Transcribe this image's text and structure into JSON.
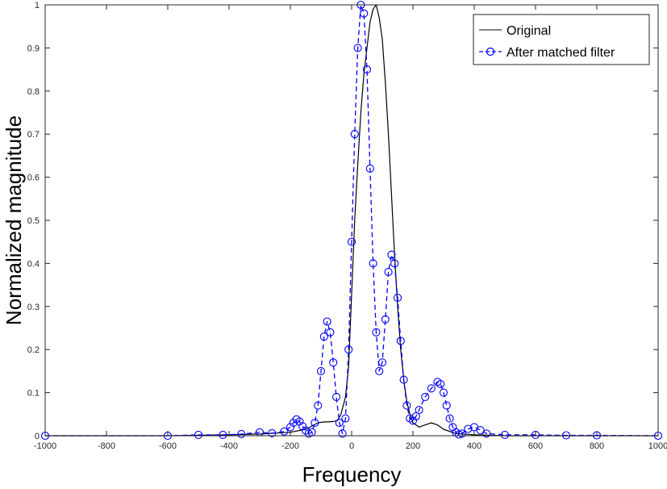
{
  "chart_data": {
    "type": "line",
    "xlabel": "Frequency",
    "ylabel": "Normalized magnitude",
    "xlim": [
      -1000,
      1000
    ],
    "ylim": [
      0,
      1
    ],
    "xticks": [
      -1000,
      -800,
      -600,
      -400,
      -200,
      0,
      200,
      400,
      600,
      800,
      1000
    ],
    "yticks": [
      0,
      0.1,
      0.2,
      0.3,
      0.4,
      0.5,
      0.6,
      0.7,
      0.8,
      0.9,
      1
    ],
    "xtick_labels": [
      "-1000",
      "-800",
      "-600",
      "-400",
      "-200",
      "0",
      "200",
      "400",
      "600",
      "800",
      "1000"
    ],
    "ytick_labels": [
      "0",
      "0.1",
      "0.2",
      "0.3",
      "0.4",
      "0.5",
      "0.6",
      "0.7",
      "0.8",
      "0.9",
      "1"
    ],
    "grid": false,
    "legend_position": "top-right",
    "series": [
      {
        "name": "Original",
        "color": "#000000",
        "style": "solid",
        "marker": "none",
        "x": [
          -1000,
          -600,
          -400,
          -300,
          -200,
          -150,
          -110,
          -90,
          -80,
          -60,
          -45,
          -35,
          -20,
          -10,
          0,
          10,
          20,
          30,
          40,
          50,
          60,
          70,
          80,
          90,
          100,
          110,
          120,
          130,
          140,
          150,
          160,
          170,
          180,
          190,
          200,
          220,
          240,
          260,
          280,
          300,
          340,
          400,
          500,
          700,
          1000
        ],
        "y": [
          0,
          0,
          0.002,
          0.004,
          0.008,
          0.015,
          0.03,
          0.032,
          0.032,
          0.033,
          0.036,
          0.05,
          0.09,
          0.16,
          0.33,
          0.5,
          0.63,
          0.75,
          0.84,
          0.9,
          0.96,
          0.99,
          1.0,
          0.97,
          0.92,
          0.82,
          0.7,
          0.56,
          0.42,
          0.3,
          0.2,
          0.13,
          0.08,
          0.05,
          0.03,
          0.02,
          0.025,
          0.03,
          0.025,
          0.015,
          0.005,
          0.002,
          0,
          0,
          0
        ]
      },
      {
        "name": "After matched filter",
        "color": "#0000ff",
        "style": "dashed",
        "marker": "circle",
        "x": [
          -1000,
          -600,
          -500,
          -420,
          -360,
          -300,
          -260,
          -220,
          -200,
          -190,
          -180,
          -170,
          -160,
          -150,
          -140,
          -130,
          -120,
          -110,
          -100,
          -90,
          -80,
          -70,
          -60,
          -50,
          -40,
          -30,
          -20,
          -10,
          0,
          10,
          20,
          30,
          40,
          50,
          60,
          70,
          80,
          90,
          100,
          110,
          120,
          130,
          140,
          150,
          160,
          170,
          180,
          190,
          200,
          210,
          220,
          240,
          260,
          280,
          290,
          300,
          310,
          320,
          330,
          340,
          350,
          360,
          380,
          400,
          420,
          440,
          500,
          600,
          700,
          800,
          1000
        ],
        "y": [
          0,
          0,
          0.002,
          0.002,
          0.004,
          0.008,
          0.006,
          0.01,
          0.02,
          0.03,
          0.038,
          0.033,
          0.022,
          0.012,
          0.005,
          0.008,
          0.03,
          0.07,
          0.15,
          0.23,
          0.265,
          0.24,
          0.17,
          0.09,
          0.03,
          0.005,
          0.04,
          0.2,
          0.45,
          0.7,
          0.9,
          1.0,
          0.98,
          0.85,
          0.62,
          0.4,
          0.24,
          0.15,
          0.17,
          0.27,
          0.38,
          0.42,
          0.4,
          0.32,
          0.22,
          0.13,
          0.07,
          0.04,
          0.035,
          0.045,
          0.06,
          0.09,
          0.11,
          0.125,
          0.12,
          0.1,
          0.07,
          0.04,
          0.02,
          0.008,
          0.003,
          0.005,
          0.016,
          0.02,
          0.013,
          0.005,
          0.002,
          0.002,
          0.001,
          0.001,
          0
        ]
      }
    ]
  }
}
